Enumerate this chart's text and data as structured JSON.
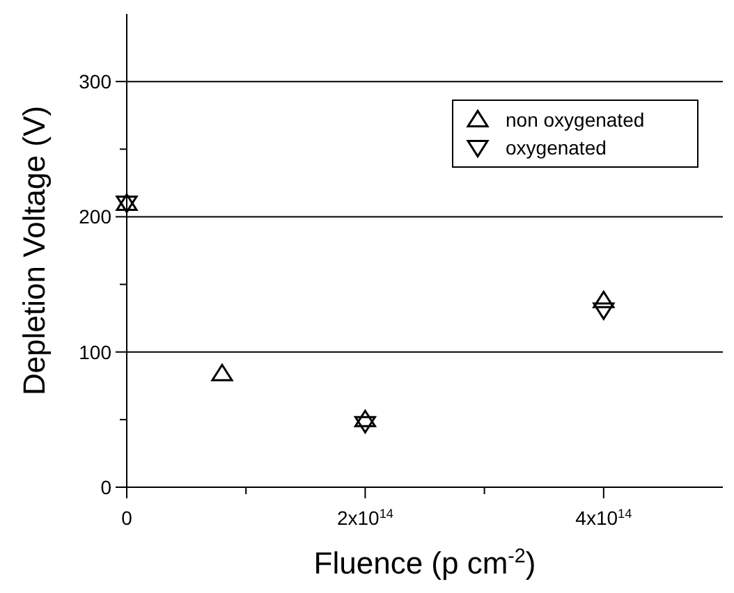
{
  "chart_data": {
    "type": "scatter",
    "xlabel": "Fluence (p cm$^{-2}$)",
    "ylabel": "Depletion Voltage (V)",
    "xlim": [
      0,
      500000000000000.0
    ],
    "xticks": [
      0,
      {
        "value": 100000000000000.0,
        "label": null
      },
      {
        "value": 200000000000000.0,
        "label": "2x10$^{14}$"
      },
      {
        "value": 300000000000000.0,
        "label": null
      },
      {
        "value": 400000000000000.0,
        "label": "4x10$^{14}$"
      }
    ],
    "ylim": [
      0,
      350
    ],
    "yticks": [
      0,
      {
        "value": 50,
        "label": null
      },
      100,
      {
        "value": 150,
        "label": null
      },
      200,
      {
        "value": 250,
        "label": null
      },
      300
    ],
    "grid": "y",
    "legend": "top right",
    "series": [
      {
        "name": "non oxygenated",
        "color": "#000000",
        "marker": "triangle",
        "x": [
          0,
          80000000000000.0,
          200000000000000.0,
          400000000000000.0
        ],
        "values": [
          210,
          84,
          50,
          138
        ]
      },
      {
        "name": "oxygenated",
        "color": "#000000",
        "marker": "triangle-down",
        "x": [
          0,
          200000000000000.0,
          400000000000000.0
        ],
        "values": [
          210,
          47,
          131
        ]
      }
    ]
  }
}
